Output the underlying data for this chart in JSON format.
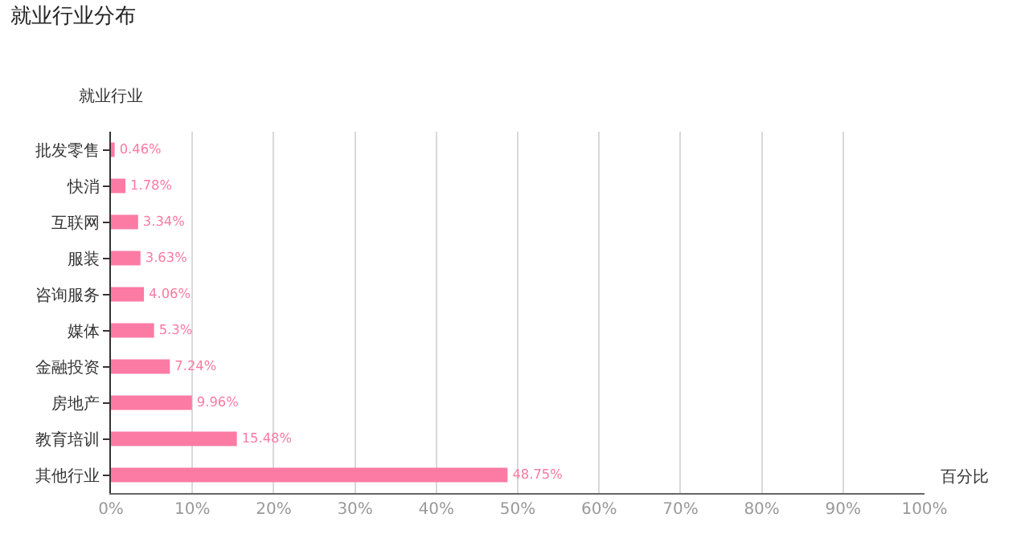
{
  "chart_data": {
    "type": "bar",
    "orientation": "horizontal",
    "title": "就业行业分布",
    "xlabel": "百分比",
    "ylabel": "就业行业",
    "categories": [
      "批发零售",
      "快消",
      "互联网",
      "服装",
      "咨询服务",
      "媒体",
      "金融投资",
      "房地产",
      "教育培训",
      "其他行业"
    ],
    "values": [
      0.46,
      1.78,
      3.34,
      3.63,
      4.06,
      5.3,
      7.24,
      9.96,
      15.48,
      48.75
    ],
    "value_labels": [
      "0.46%",
      "1.78%",
      "3.34%",
      "3.63%",
      "4.06%",
      "5.3%",
      "7.24%",
      "9.96%",
      "15.48%",
      "48.75%"
    ],
    "color": "#fb7ba4",
    "xlim": [
      0,
      100
    ],
    "xticks": [
      {
        "value": 0,
        "label": "0%"
      },
      {
        "value": 10,
        "label": "10%"
      },
      {
        "value": 20,
        "label": "20%"
      },
      {
        "value": 30,
        "label": "30%"
      },
      {
        "value": 40,
        "label": "40%"
      },
      {
        "value": 50,
        "label": "50%"
      },
      {
        "value": 60,
        "label": "60%"
      },
      {
        "value": 70,
        "label": "70%"
      },
      {
        "value": 80,
        "label": "80%"
      },
      {
        "value": 90,
        "label": "90%"
      },
      {
        "value": 100,
        "label": "100%"
      }
    ],
    "grid": "x",
    "legend": false
  }
}
